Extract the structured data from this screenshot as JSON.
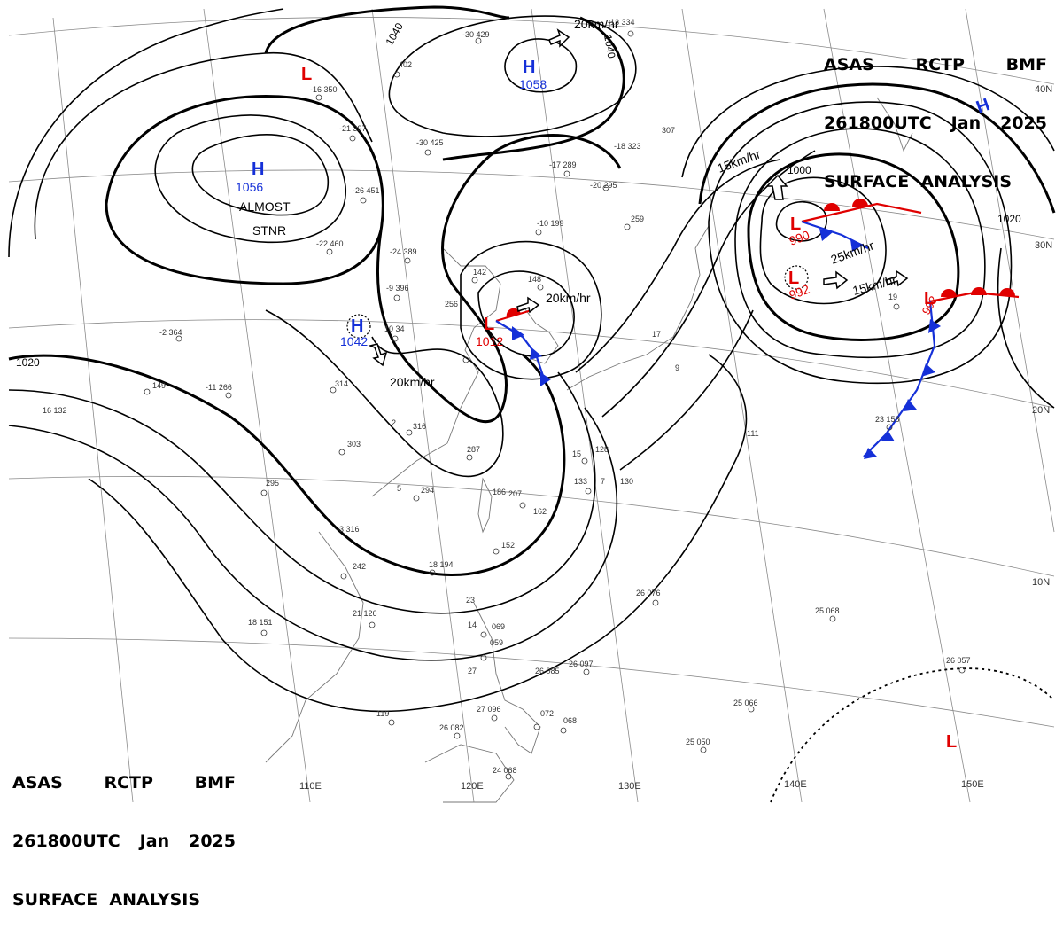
{
  "header": {
    "line1": [
      "ASAS",
      "RCTP",
      "BMF"
    ],
    "line2": [
      "261800UTC",
      "Jan",
      "2025"
    ],
    "line3": "SURFACE  ANALYSIS"
  },
  "colors": {
    "high": "#1530d8",
    "low": "#e00000",
    "isobar": "#000000",
    "grid": "#8a8a8a",
    "warm_front": "#e00000",
    "cold_front": "#1530d8"
  },
  "centers": [
    {
      "type": "L",
      "label": "L",
      "pressure": ""
    },
    {
      "type": "H",
      "label": "H",
      "pressure": "1058"
    },
    {
      "type": "H",
      "label": "H",
      "pressure": "1056"
    },
    {
      "type": "H",
      "label": "H",
      "pressure": "1042"
    },
    {
      "type": "L",
      "label": "L",
      "pressure": "1012"
    },
    {
      "type": "L",
      "label": "L",
      "pressure": "990"
    },
    {
      "type": "L",
      "label": "L",
      "pressure": "992"
    },
    {
      "type": "L",
      "label": "L",
      "pressure": "992"
    },
    {
      "type": "H",
      "label": "H",
      "pressure": ""
    },
    {
      "type": "L",
      "label": "L",
      "pressure": ""
    }
  ],
  "annotations": {
    "almost_stnr": [
      "ALMOST",
      "STNR"
    ],
    "motions": [
      "20km/hr",
      "20km/hr",
      "20km/hr",
      "15km/hr",
      "25km/hr",
      "15km/hr"
    ]
  },
  "isobar_labels": [
    "1040",
    "1040",
    "1020",
    "1020",
    "1000"
  ],
  "grid_labels": {
    "longitudes": [
      "110E",
      "120E",
      "130E",
      "140E",
      "150E"
    ],
    "latitudes": [
      "40N",
      "30N",
      "20N",
      "10N"
    ]
  },
  "stations": [
    "-30 429",
    "-13 334",
    "402",
    "-16 350",
    "-21 397",
    "-30 425",
    "-26 451",
    "-22 460",
    "-24 389",
    "-9 396",
    "10 34",
    "-17 289",
    "-20 295",
    "-18 323",
    "307",
    "259",
    "-10 199",
    "148",
    "142",
    "256",
    "-11 266",
    "-2 364",
    "314",
    "149",
    "16 132",
    "2",
    "316",
    "303",
    "295",
    "5",
    "294",
    "287",
    "-3 316",
    "186",
    "15",
    "128",
    "133",
    "7",
    "130",
    "207",
    "162",
    "152",
    "18 194",
    "242",
    "21 126",
    "18 151",
    "26 085",
    "23",
    "14",
    "069",
    "059",
    "27",
    "119",
    "26 082",
    "27 096",
    "072",
    "068",
    "24 068",
    "26 097",
    "25 066",
    "25 050",
    "25 068",
    "26 057",
    "26 076",
    "23 158",
    "19",
    "17",
    "9",
    "111"
  ]
}
